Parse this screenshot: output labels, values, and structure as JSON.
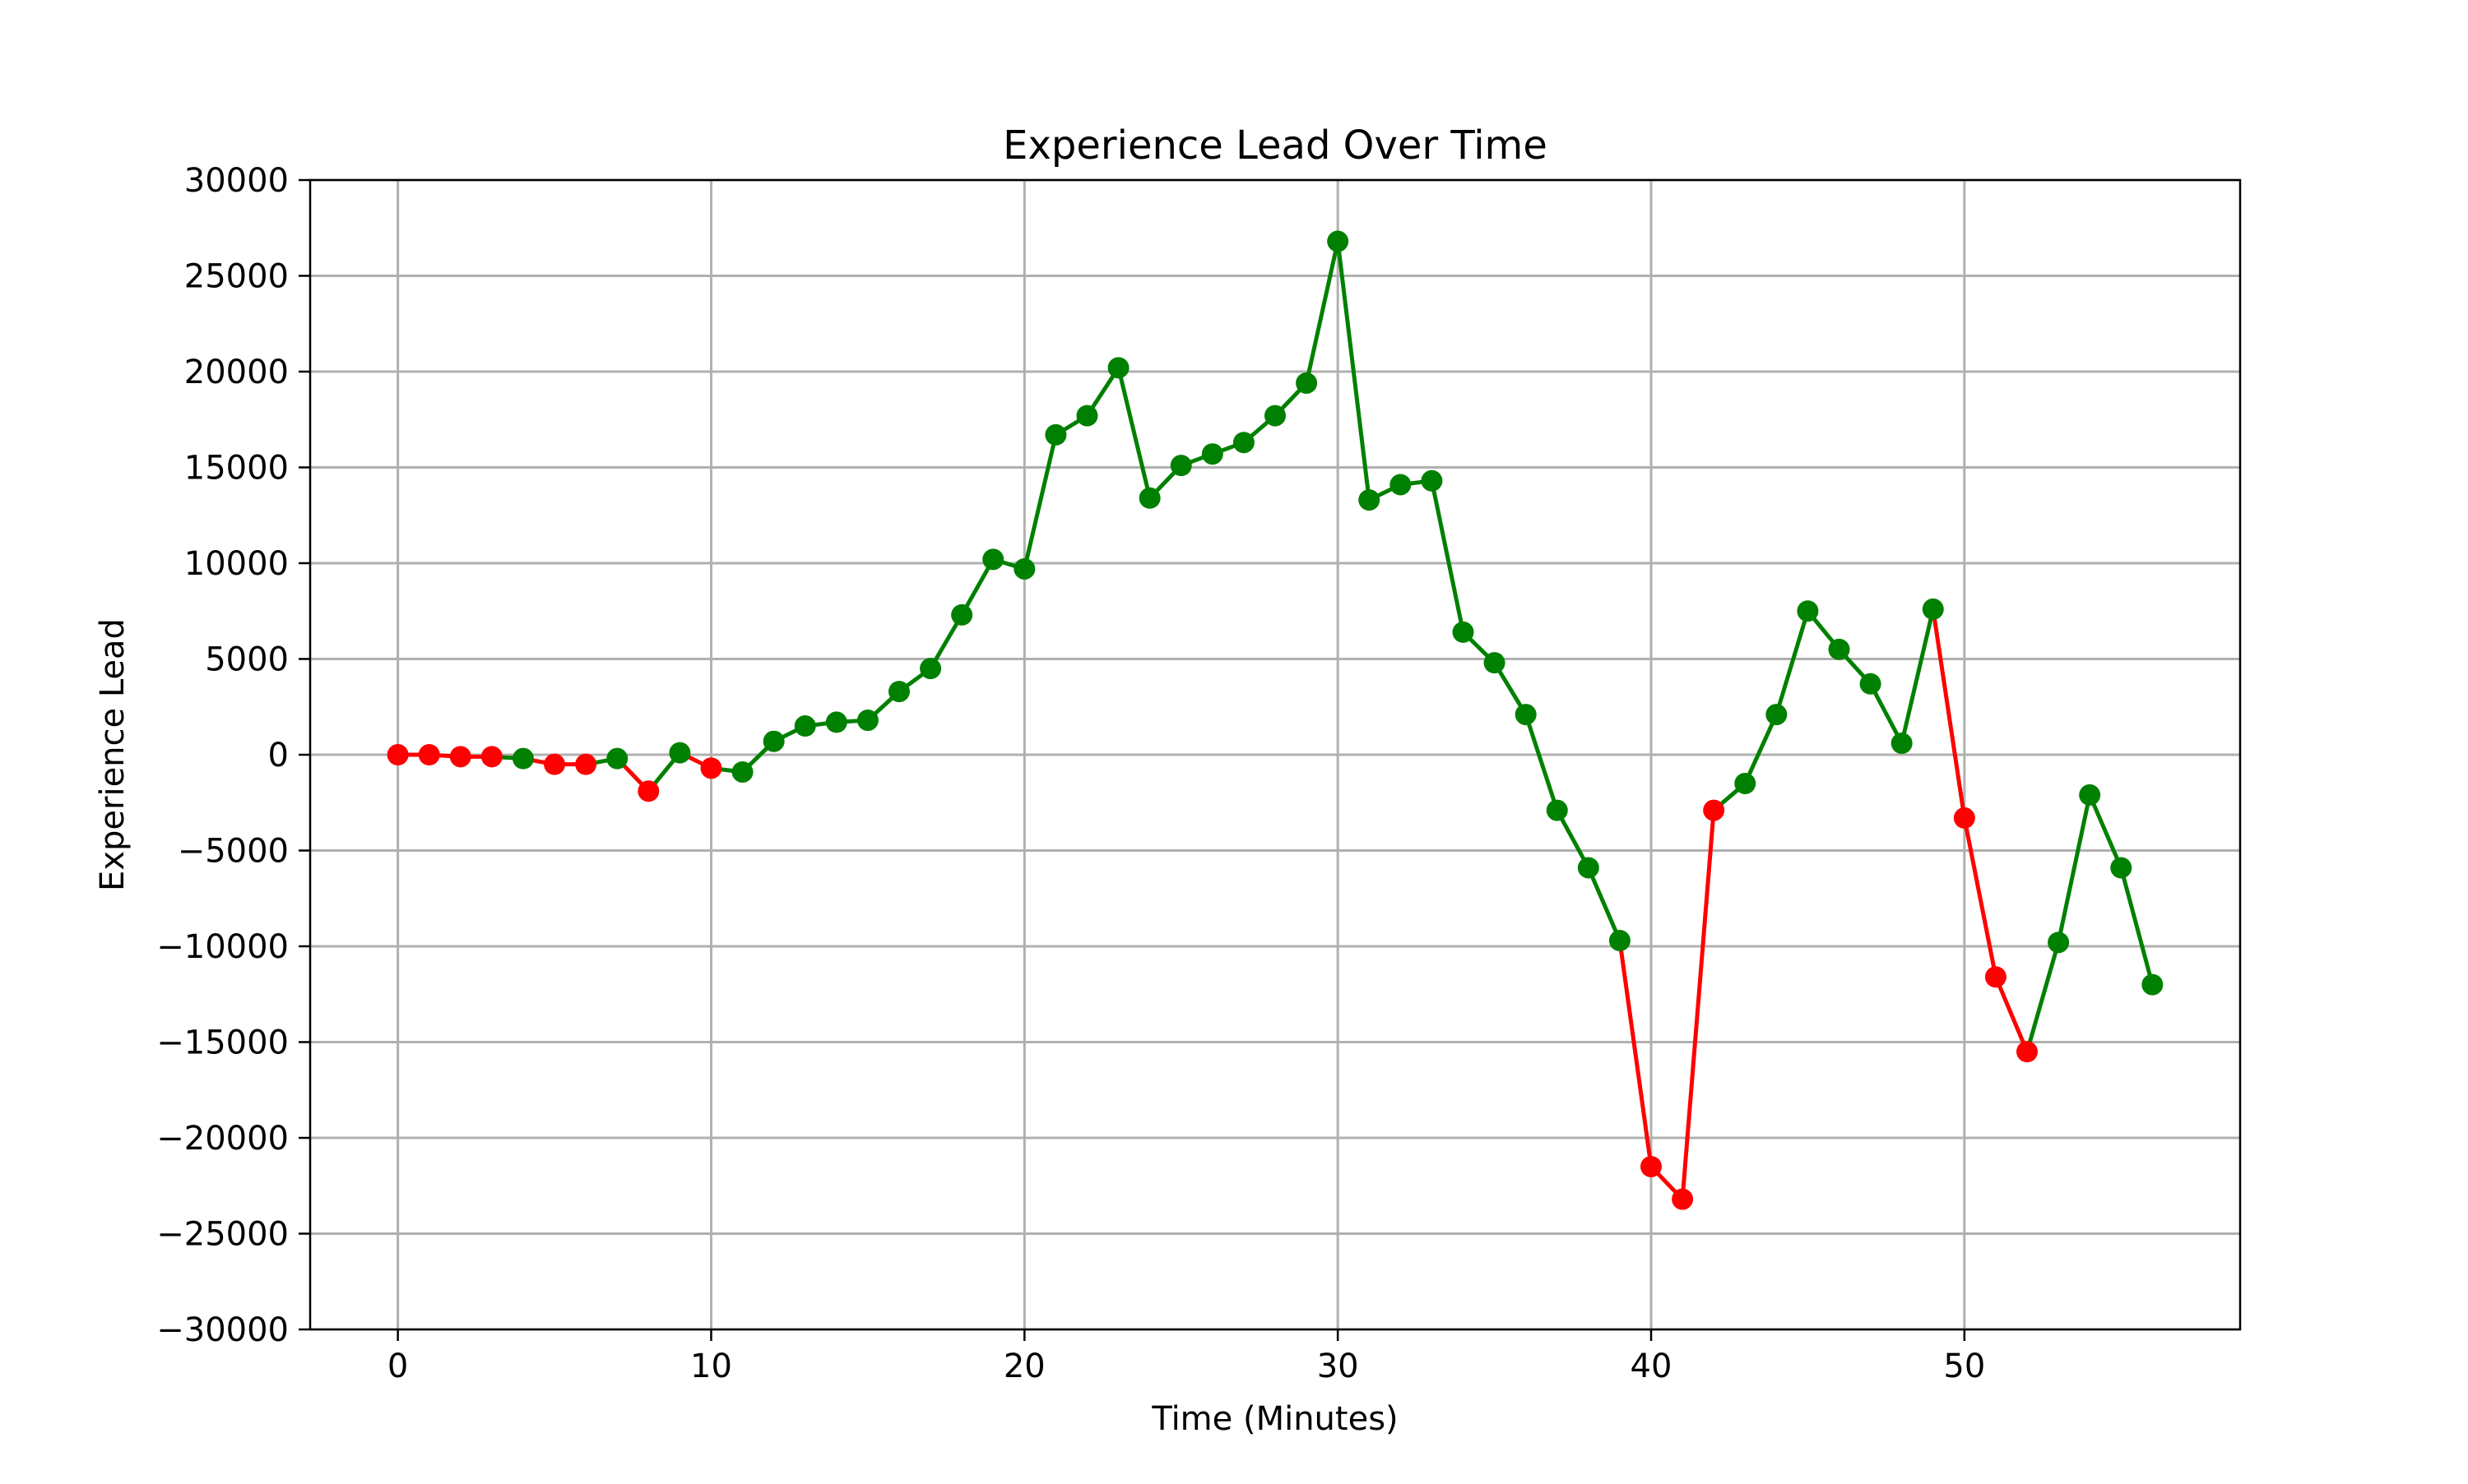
{
  "chart_data": {
    "type": "line",
    "title": "Experience Lead Over Time",
    "xlabel": "Time (Minutes)",
    "ylabel": "Experience Lead",
    "xlim": [
      -2.8,
      58.8
    ],
    "ylim": [
      -30000,
      30000
    ],
    "xticks": [
      0,
      10,
      20,
      30,
      40,
      50
    ],
    "yticks": [
      -30000,
      -25000,
      -20000,
      -15000,
      -10000,
      -5000,
      0,
      5000,
      10000,
      15000,
      20000,
      25000,
      30000
    ],
    "xtick_labels": [
      "0",
      "10",
      "20",
      "30",
      "40",
      "50"
    ],
    "ytick_labels": [
      "−30000",
      "−25000",
      "−20000",
      "−15000",
      "−10000",
      "−5000",
      "0",
      "5000",
      "10000",
      "15000",
      "20000",
      "25000",
      "30000"
    ],
    "grid": true,
    "legend": "none",
    "colors": {
      "positive_trend": "#008000",
      "negative_trend": "#ff0000"
    },
    "x": [
      0,
      1,
      2,
      3,
      4,
      5,
      6,
      7,
      8,
      9,
      10,
      11,
      12,
      13,
      14,
      15,
      16,
      17,
      18,
      19,
      20,
      21,
      22,
      23,
      24,
      25,
      26,
      27,
      28,
      29,
      30,
      31,
      32,
      33,
      34,
      35,
      36,
      37,
      38,
      39,
      40,
      41,
      42,
      43,
      44,
      45,
      46,
      47,
      48,
      49,
      50,
      51,
      52,
      53,
      54,
      55,
      56
    ],
    "values": [
      0,
      0,
      -100,
      -100,
      -200,
      -500,
      -500,
      -200,
      -1900,
      100,
      -700,
      -900,
      700,
      1500,
      1700,
      1800,
      3300,
      4500,
      7300,
      10200,
      9700,
      16700,
      17700,
      20200,
      13400,
      15100,
      15700,
      16300,
      17700,
      19400,
      26800,
      13300,
      14100,
      14300,
      6400,
      4800,
      2100,
      -2900,
      -5900,
      -9700,
      -21500,
      -23200,
      -2900,
      -1500,
      2100,
      7500,
      5500,
      3700,
      600,
      7600,
      -3300,
      -11600,
      -15500,
      -9800,
      -2100,
      -5900,
      -12000
    ],
    "point_colors": [
      "red",
      "red",
      "red",
      "red",
      "green",
      "red",
      "red",
      "green",
      "red",
      "green",
      "red",
      "green",
      "green",
      "green",
      "green",
      "green",
      "green",
      "green",
      "green",
      "green",
      "green",
      "green",
      "green",
      "green",
      "green",
      "green",
      "green",
      "green",
      "green",
      "green",
      "green",
      "green",
      "green",
      "green",
      "green",
      "green",
      "green",
      "green",
      "green",
      "green",
      "red",
      "red",
      "red",
      "green",
      "green",
      "green",
      "green",
      "green",
      "green",
      "green",
      "red",
      "red",
      "red",
      "green",
      "green",
      "green",
      "green"
    ]
  }
}
